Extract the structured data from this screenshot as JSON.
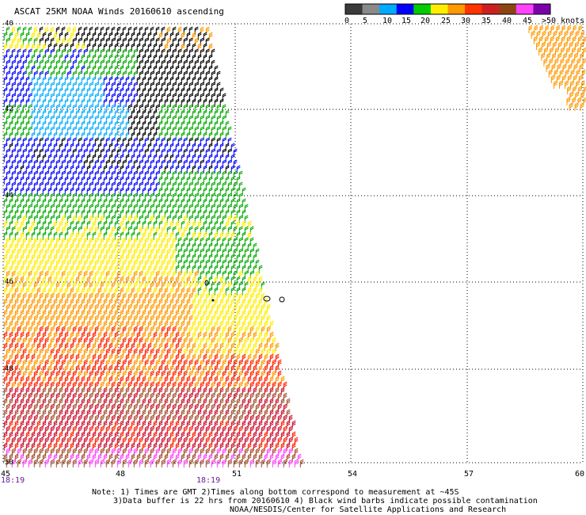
{
  "title": "ASCAT 25KM NOAA Winds 20160610 ascending",
  "scale": {
    "labels": [
      "0",
      "5",
      "10",
      "15",
      "20",
      "25",
      "30",
      "35",
      "40",
      "45",
      ">50 knots"
    ],
    "colors": [
      "#3a3a3a",
      "#8a8a8a",
      "#00aaff",
      "#0000ff",
      "#00cc00",
      "#ffee00",
      "#ff9900",
      "#ff3300",
      "#cc2020",
      "#8b4513",
      "#ff44ff",
      "#7a00aa"
    ]
  },
  "map": {
    "latitudes": [
      "40",
      "42",
      "44",
      "46",
      "48",
      "50"
    ],
    "longitudes": [
      "45",
      "48",
      "51",
      "54",
      "57",
      "60"
    ],
    "times": [
      "18:19",
      "18:19"
    ]
  },
  "notes": [
    "Note: 1) Times are GMT 2)Times along bottom correspond to measurement at ~45S",
    "3)Data buffer is 22 hrs from 20160610 4) Black wind barbs indicate possible contamination",
    "NOAA/NESDIS/Center for Satellite Applications and Research"
  ],
  "colors": {
    "black_barb": "#000000",
    "green_barb": "#00aa00",
    "blue_barb": "#0000ff",
    "cyan_barb": "#00aaff",
    "yellow_barb": "#ffee00",
    "orange_barb": "#ff9900",
    "red_barb": "#ff2200",
    "darkred_barb": "#cc1030",
    "brown_barb": "#a0522d",
    "magenta_barb": "#ff44ff"
  }
}
